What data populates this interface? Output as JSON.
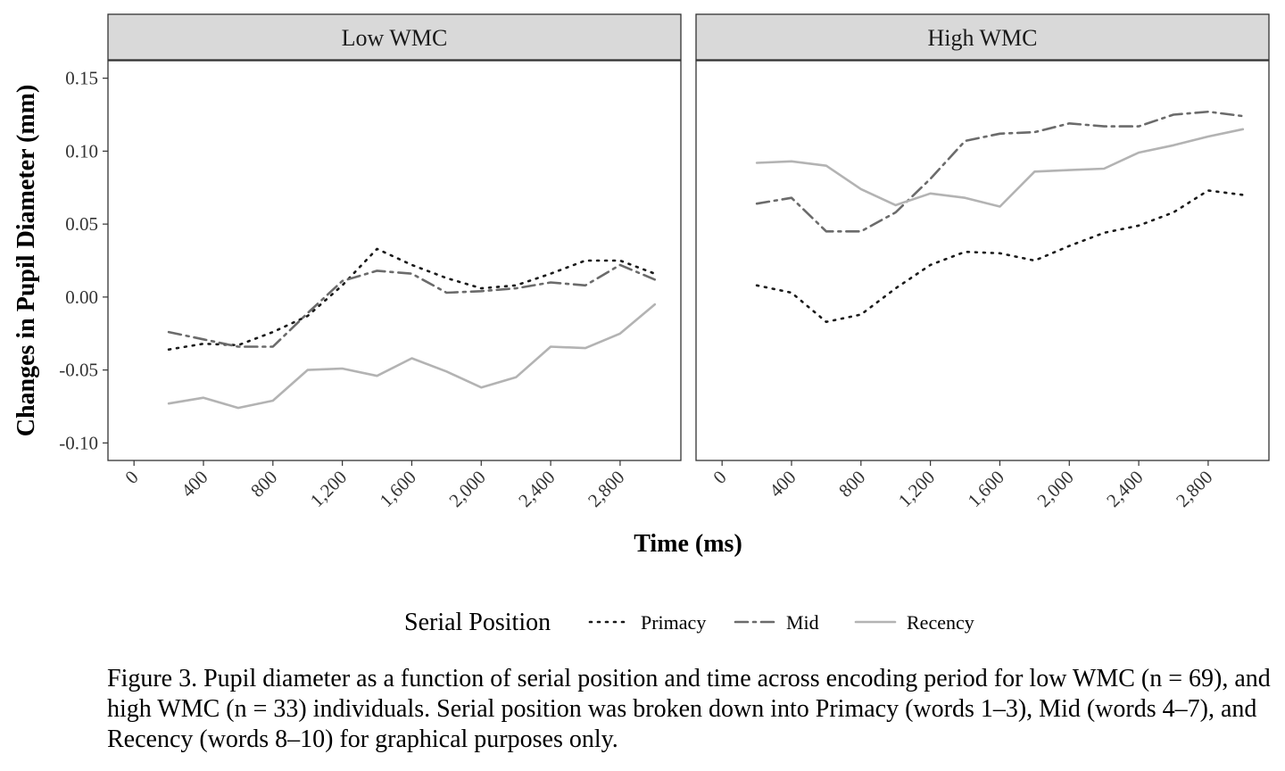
{
  "chart_data": {
    "type": "line",
    "ylabel": "Changes in Pupil Diameter (mm)",
    "xlabel": "Time (ms)",
    "ylim": [
      -0.112,
      0.162
    ],
    "xlim": [
      -150,
      3150
    ],
    "y_ticks": [
      -0.1,
      -0.05,
      0.0,
      0.05,
      0.1,
      0.15
    ],
    "y_tick_labels": [
      "-0.10",
      "-0.05",
      "0.00",
      "0.05",
      "0.10",
      "0.15"
    ],
    "x_ticks": [
      0,
      400,
      800,
      1200,
      1600,
      2000,
      2400,
      2800
    ],
    "x_tick_labels": [
      "0",
      "400",
      "800",
      "1,200",
      "1,600",
      "2,000",
      "2,400",
      "2,800"
    ],
    "grid": false,
    "legend": {
      "title": "Serial Position",
      "placement": "bottom",
      "entries": [
        "Primacy",
        "Mid",
        "Recency"
      ]
    },
    "series_styles": {
      "Primacy": {
        "color": "#1a1a1a",
        "dash": "2,7"
      },
      "Mid": {
        "color": "#6b6b6b",
        "dash": "14,6,3,6"
      },
      "Recency": {
        "color": "#b3b3b3",
        "dash": ""
      }
    },
    "x": [
      200,
      400,
      600,
      800,
      1000,
      1200,
      1400,
      1600,
      1800,
      2000,
      2200,
      2400,
      2600,
      2800,
      3000
    ],
    "panels": [
      {
        "title": "Low WMC",
        "series": [
          {
            "name": "Primacy",
            "values": [
              -0.036,
              -0.032,
              -0.033,
              -0.024,
              -0.013,
              0.008,
              0.033,
              0.022,
              0.013,
              0.006,
              0.008,
              0.016,
              0.025,
              0.025,
              0.016
            ]
          },
          {
            "name": "Mid",
            "values": [
              -0.024,
              -0.029,
              -0.034,
              -0.034,
              -0.011,
              0.011,
              0.018,
              0.016,
              0.003,
              0.004,
              0.006,
              0.01,
              0.008,
              0.022,
              0.012
            ]
          },
          {
            "name": "Recency",
            "values": [
              -0.073,
              -0.069,
              -0.076,
              -0.071,
              -0.05,
              -0.049,
              -0.054,
              -0.042,
              -0.051,
              -0.062,
              -0.055,
              -0.034,
              -0.035,
              -0.025,
              -0.005
            ]
          }
        ]
      },
      {
        "title": "High WMC",
        "series": [
          {
            "name": "Primacy",
            "values": [
              0.008,
              0.003,
              -0.017,
              -0.012,
              0.006,
              0.022,
              0.031,
              0.03,
              0.025,
              0.035,
              0.044,
              0.049,
              0.058,
              0.073,
              0.07
            ]
          },
          {
            "name": "Mid",
            "values": [
              0.064,
              0.068,
              0.045,
              0.045,
              0.058,
              0.081,
              0.107,
              0.112,
              0.113,
              0.119,
              0.117,
              0.117,
              0.125,
              0.127,
              0.124
            ]
          },
          {
            "name": "Recency",
            "values": [
              0.092,
              0.093,
              0.09,
              0.074,
              0.063,
              0.071,
              0.068,
              0.062,
              0.086,
              0.087,
              0.088,
              0.099,
              0.104,
              0.11,
              0.115
            ]
          }
        ]
      }
    ]
  },
  "caption": "Figure 3. Pupil diameter as a function of serial position and time across encoding period for low WMC (n = 69), and high WMC (n = 33) individuals. Serial position was broken down into Primacy (words 1–3), Mid (words 4–7), and Recency (words 8–10) for graphical purposes only."
}
